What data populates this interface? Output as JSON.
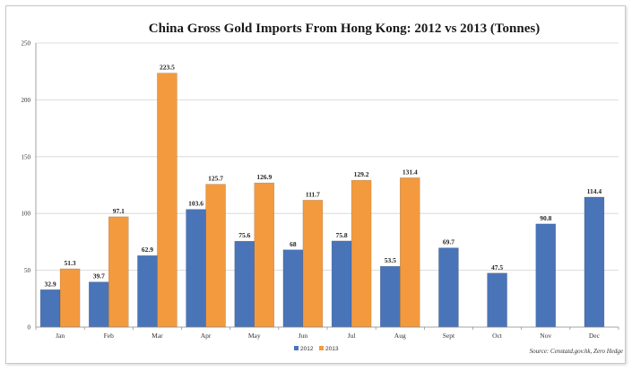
{
  "chart_data": {
    "type": "bar",
    "title": "China Gross Gold Imports From Hong Kong: 2012 vs 2013 (Tonnes)",
    "xlabel": "",
    "ylabel": "",
    "categories": [
      "Jan",
      "Feb",
      "Mar",
      "Apr",
      "May",
      "Jun",
      "Jul",
      "Aug",
      "Sept",
      "Oct",
      "Nov",
      "Dec"
    ],
    "series": [
      {
        "name": "2012",
        "color": "#4a74b8",
        "values": [
          32.9,
          39.7,
          62.9,
          103.6,
          75.6,
          68,
          75.8,
          53.5,
          69.7,
          47.5,
          90.8,
          114.4
        ],
        "labels": [
          "32.9",
          "39.7",
          "62.9",
          "103.6",
          "75.6",
          "68",
          "75.8",
          "53.5",
          "69.7",
          "47.5",
          "90.8",
          "114.4"
        ]
      },
      {
        "name": "2013",
        "color": "#f39a3e",
        "values": [
          51.3,
          97.1,
          223.5,
          125.7,
          126.9,
          111.7,
          129.2,
          131.4,
          null,
          null,
          null,
          null
        ],
        "labels": [
          "51.3",
          "97.1",
          "223.5",
          "125.7",
          "126.9",
          "111.7",
          "129.2",
          "131.4",
          "",
          "",
          "",
          ""
        ]
      }
    ],
    "ylim": [
      0,
      250
    ],
    "yticks": [
      0,
      50,
      100,
      150,
      200,
      250
    ],
    "grid": true,
    "legend_position": "bottom-center",
    "source": "Source: Censtatd.gov.hk, Zero Hedge"
  }
}
